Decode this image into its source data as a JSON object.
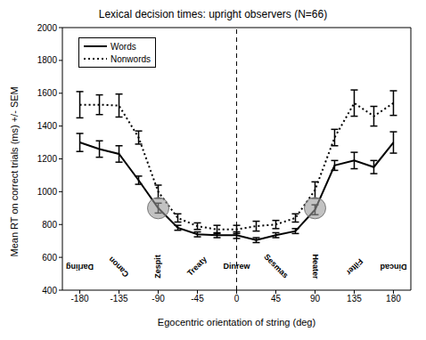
{
  "chart_data": {
    "type": "line",
    "title": "Lexical decision times: upright observers (N=66)",
    "x_label": "Egocentric orientation of string (deg)",
    "y_label": "Mean RT on correct trials (ms) +/- SEM",
    "x": [
      -180,
      -157.5,
      -135,
      -112.5,
      -90,
      -67.5,
      -45,
      -22.5,
      0,
      22.5,
      45,
      67.5,
      90,
      112.5,
      135,
      157.5,
      180
    ],
    "series": [
      {
        "name": "Words",
        "color": "#000000",
        "line_style": "solid",
        "values": [
          1300,
          1260,
          1230,
          1070,
          900,
          780,
          740,
          735,
          735,
          705,
          735,
          760,
          890,
          1160,
          1190,
          1150,
          1300
        ],
        "errors": [
          55,
          50,
          50,
          25,
          30,
          15,
          15,
          15,
          20,
          15,
          15,
          15,
          30,
          30,
          50,
          40,
          65
        ]
      },
      {
        "name": "Nonwords",
        "color": "#000000",
        "line_style": "dotted",
        "values": [
          1530,
          1530,
          1525,
          1330,
          1000,
          840,
          790,
          770,
          770,
          790,
          800,
          840,
          1010,
          1330,
          1540,
          1460,
          1540
        ],
        "errors": [
          80,
          60,
          70,
          40,
          40,
          25,
          20,
          25,
          25,
          30,
          25,
          25,
          50,
          50,
          80,
          60,
          75
        ]
      }
    ],
    "xlim": [
      -200,
      200
    ],
    "xticks": [
      -180,
      -135,
      -90,
      -45,
      0,
      45,
      90,
      135,
      180
    ],
    "ylim": [
      400,
      2000
    ],
    "yticks": [
      400,
      600,
      800,
      1000,
      1200,
      1400,
      1600,
      1800,
      2000
    ],
    "grid": false,
    "legend": "upper left",
    "vline": 0,
    "highlights": [
      {
        "x": -90,
        "y": 900
      },
      {
        "x": 90,
        "y": 900
      }
    ],
    "annotations": [
      {
        "x": -180,
        "text": "Darling"
      },
      {
        "x": -135,
        "text": "Canon"
      },
      {
        "x": -90,
        "text": "Zespit"
      },
      {
        "x": -45,
        "text": "Treaty"
      },
      {
        "x": 0,
        "text": "Dinrew"
      },
      {
        "x": 45,
        "text": "Sesmas"
      },
      {
        "x": 90,
        "text": "Heater"
      },
      {
        "x": 135,
        "text": "Filter"
      },
      {
        "x": 180,
        "text": "Dincad"
      }
    ]
  }
}
